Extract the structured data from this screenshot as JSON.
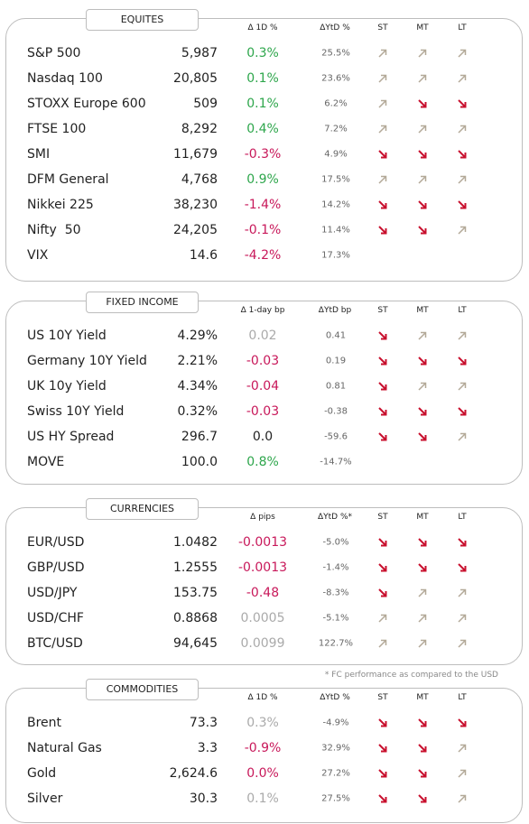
{
  "arrow_colors": {
    "up": "#b3a998",
    "down": "#c8102e"
  },
  "sections": [
    {
      "title": "EQUITES",
      "columns": [
        "Δ 1D %",
        "ΔYtD %",
        "ST",
        "MT",
        "LT"
      ],
      "rows": [
        {
          "name": "S&P 500",
          "value": "5,987",
          "change": "0.3%",
          "change_color": "#2ea64c",
          "ytd": "25.5%",
          "trends": [
            "up",
            "up",
            "up"
          ]
        },
        {
          "name": "Nasdaq 100",
          "value": "20,805",
          "change": "0.1%",
          "change_color": "#2ea64c",
          "ytd": "23.6%",
          "trends": [
            "up",
            "up",
            "up"
          ]
        },
        {
          "name": "STOXX Europe 600",
          "value": "509",
          "change": "0.1%",
          "change_color": "#2ea64c",
          "ytd": "6.2%",
          "trends": [
            "up",
            "down",
            "down"
          ]
        },
        {
          "name": "FTSE 100",
          "value": "8,292",
          "change": "0.4%",
          "change_color": "#2ea64c",
          "ytd": "7.2%",
          "trends": [
            "up",
            "up",
            "up"
          ]
        },
        {
          "name": "SMI",
          "value": "11,679",
          "change": "-0.3%",
          "change_color": "#c8185a",
          "ytd": "4.9%",
          "trends": [
            "down",
            "down",
            "down"
          ]
        },
        {
          "name": "DFM General",
          "value": "4,768",
          "change": "0.9%",
          "change_color": "#2ea64c",
          "ytd": "17.5%",
          "trends": [
            "up",
            "up",
            "up"
          ]
        },
        {
          "name": "Nikkei 225",
          "value": "38,230",
          "change": "-1.4%",
          "change_color": "#c8185a",
          "ytd": "14.2%",
          "trends": [
            "down",
            "down",
            "down"
          ]
        },
        {
          "name": "Nifty  50",
          "value": "24,205",
          "change": "-0.1%",
          "change_color": "#c8185a",
          "ytd": "11.4%",
          "trends": [
            "down",
            "down",
            "up"
          ]
        },
        {
          "name": "VIX",
          "value": "14.6",
          "change": "-4.2%",
          "change_color": "#c8185a",
          "ytd": "17.3%",
          "trends": [
            null,
            null,
            null
          ]
        }
      ]
    },
    {
      "title": "FIXED INCOME",
      "columns": [
        "Δ 1-day bp",
        "ΔYtD bp",
        "ST",
        "MT",
        "LT"
      ],
      "rows": [
        {
          "name": "US 10Y Yield",
          "value": "4.29%",
          "change": "0.02",
          "change_color": "#aaaaaa",
          "ytd": "0.41",
          "trends": [
            "down",
            "up",
            "up"
          ]
        },
        {
          "name": "Germany 10Y Yield",
          "value": "2.21%",
          "change": "-0.03",
          "change_color": "#c8185a",
          "ytd": "0.19",
          "trends": [
            "down",
            "down",
            "down"
          ]
        },
        {
          "name": "UK 10y Yield",
          "value": "4.34%",
          "change": "-0.04",
          "change_color": "#c8185a",
          "ytd": "0.81",
          "trends": [
            "down",
            "up",
            "up"
          ]
        },
        {
          "name": "Swiss 10Y Yield",
          "value": "0.32%",
          "change": "-0.03",
          "change_color": "#c8185a",
          "ytd": "-0.38",
          "trends": [
            "down",
            "down",
            "down"
          ]
        },
        {
          "name": "US HY Spread",
          "value": "296.7",
          "change": "0.0",
          "change_color": "#222222",
          "ytd": "-59.6",
          "trends": [
            "down",
            "down",
            "up"
          ]
        },
        {
          "name": "MOVE",
          "value": "100.0",
          "change": "0.8%",
          "change_color": "#2ea64c",
          "ytd": "-14.7%",
          "trends": [
            null,
            null,
            null
          ]
        }
      ]
    },
    {
      "title": "CURRENCIES",
      "columns": [
        "Δ pips",
        "ΔYtD %*",
        "ST",
        "MT",
        "LT"
      ],
      "rows": [
        {
          "name": "EUR/USD",
          "value": "1.0482",
          "change": "-0.0013",
          "change_color": "#c8185a",
          "ytd": "-5.0%",
          "trends": [
            "down",
            "down",
            "down"
          ]
        },
        {
          "name": "GBP/USD",
          "value": "1.2555",
          "change": "-0.0013",
          "change_color": "#c8185a",
          "ytd": "-1.4%",
          "trends": [
            "down",
            "down",
            "down"
          ]
        },
        {
          "name": "USD/JPY",
          "value": "153.75",
          "change": "-0.48",
          "change_color": "#c8185a",
          "ytd": "-8.3%",
          "trends": [
            "down",
            "up",
            "up"
          ]
        },
        {
          "name": "USD/CHF",
          "value": "0.8868",
          "change": "0.0005",
          "change_color": "#aaaaaa",
          "ytd": "-5.1%",
          "trends": [
            "up",
            "up",
            "up"
          ]
        },
        {
          "name": "BTC/USD",
          "value": "94,645",
          "change": "0.0099",
          "change_color": "#aaaaaa",
          "ytd": "122.7%",
          "trends": [
            "up",
            "up",
            "up"
          ]
        }
      ],
      "footnote": "* FC performance as compared to the USD"
    },
    {
      "title": "COMMODITIES",
      "columns": [
        "Δ 1D %",
        "ΔYtD %",
        "ST",
        "MT",
        "LT"
      ],
      "rows": [
        {
          "name": "Brent",
          "value": "73.3",
          "change": "0.3%",
          "change_color": "#aaaaaa",
          "ytd": "-4.9%",
          "trends": [
            "down",
            "down",
            "down"
          ]
        },
        {
          "name": "Natural Gas",
          "value": "3.3",
          "change": "-0.9%",
          "change_color": "#c8185a",
          "ytd": "32.9%",
          "trends": [
            "down",
            "down",
            "up"
          ]
        },
        {
          "name": "Gold",
          "value": "2,624.6",
          "change": "0.0%",
          "change_color": "#c8185a",
          "ytd": "27.2%",
          "trends": [
            "down",
            "down",
            "up"
          ]
        },
        {
          "name": "Silver",
          "value": "30.3",
          "change": "0.1%",
          "change_color": "#aaaaaa",
          "ytd": "27.5%",
          "trends": [
            "down",
            "down",
            "up"
          ]
        }
      ]
    }
  ]
}
